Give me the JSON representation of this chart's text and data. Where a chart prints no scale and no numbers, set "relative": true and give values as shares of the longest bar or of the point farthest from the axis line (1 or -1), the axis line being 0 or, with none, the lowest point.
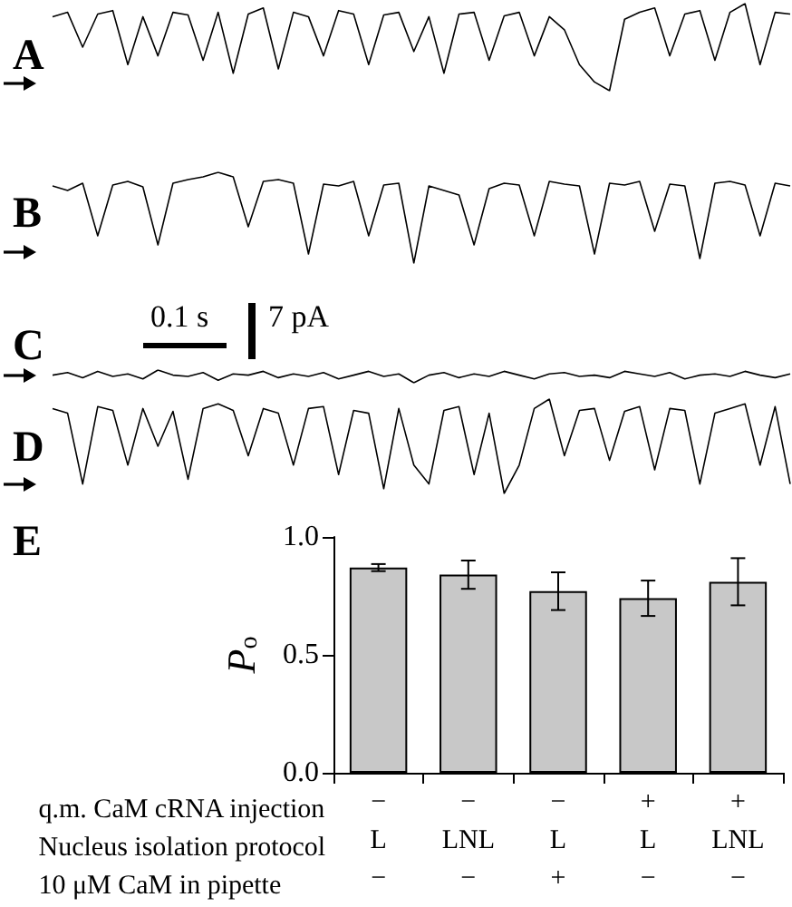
{
  "chart_data": [
    {
      "type": "line",
      "title": "A",
      "relative": true,
      "categories": [
        null,
        null,
        null,
        null,
        null,
        null,
        null,
        null,
        null,
        null,
        null,
        null,
        null,
        null,
        null,
        null,
        null,
        null,
        null,
        null,
        null,
        null,
        null,
        null,
        null,
        null,
        null,
        null,
        null,
        null,
        null,
        null,
        null,
        null,
        null,
        null,
        null,
        null,
        null,
        null,
        null,
        null,
        null,
        null,
        null,
        null,
        null,
        null,
        null,
        null
      ],
      "series": [
        {
          "color": "#000000",
          "values": [
            0.85,
            0.9,
            0.5,
            0.88,
            0.92,
            0.3,
            0.85,
            0.4,
            0.9,
            0.87,
            0.35,
            0.9,
            0.2,
            0.88,
            0.95,
            0.25,
            0.9,
            0.85,
            0.4,
            0.92,
            0.88,
            0.3,
            0.87,
            0.9,
            0.45,
            0.85,
            0.2,
            0.88,
            0.9,
            0.35,
            0.86,
            0.9,
            0.4,
            0.85,
            0.7,
            0.3,
            0.1,
            0.0,
            0.82,
            0.9,
            0.95,
            0.4,
            0.88,
            0.92,
            0.35,
            0.9,
            1.0,
            0.3,
            0.9,
            0.88
          ]
        }
      ]
    },
    {
      "type": "line",
      "title": "B",
      "relative": true,
      "categories": [
        null,
        null,
        null,
        null,
        null,
        null,
        null,
        null,
        null,
        null,
        null,
        null,
        null,
        null,
        null,
        null,
        null,
        null,
        null,
        null,
        null,
        null,
        null,
        null,
        null,
        null,
        null,
        null,
        null,
        null,
        null,
        null,
        null,
        null,
        null,
        null,
        null,
        null,
        null,
        null,
        null,
        null,
        null,
        null,
        null,
        null,
        null,
        null,
        null,
        null
      ],
      "series": [
        {
          "color": "#000000",
          "values": [
            0.85,
            0.8,
            0.88,
            0.3,
            0.86,
            0.9,
            0.84,
            0.2,
            0.88,
            0.92,
            0.95,
            1.0,
            0.95,
            0.4,
            0.9,
            0.92,
            0.88,
            0.1,
            0.87,
            0.85,
            0.9,
            0.3,
            0.86,
            0.88,
            0.0,
            0.85,
            0.8,
            0.75,
            0.2,
            0.82,
            0.88,
            0.86,
            0.3,
            0.9,
            0.87,
            0.85,
            0.1,
            0.88,
            0.86,
            0.9,
            0.35,
            0.87,
            0.85,
            0.05,
            0.88,
            0.9,
            0.86,
            0.3,
            0.88,
            0.85
          ]
        }
      ]
    },
    {
      "type": "line",
      "title": "C",
      "relative": true,
      "annotations": [
        "0.1 s",
        "7 pA"
      ],
      "categories": [
        null,
        null,
        null,
        null,
        null,
        null,
        null,
        null,
        null,
        null,
        null,
        null,
        null,
        null,
        null,
        null,
        null,
        null,
        null,
        null,
        null,
        null,
        null,
        null,
        null,
        null,
        null,
        null,
        null,
        null,
        null,
        null,
        null,
        null,
        null,
        null,
        null,
        null,
        null,
        null,
        null,
        null,
        null,
        null,
        null,
        null,
        null,
        null,
        null,
        null
      ],
      "series": [
        {
          "color": "#000000",
          "values": [
            0.6,
            0.8,
            0.4,
            0.9,
            0.5,
            0.7,
            0.3,
            1.0,
            0.6,
            0.5,
            0.8,
            0.2,
            0.7,
            0.6,
            0.9,
            0.4,
            0.7,
            0.5,
            0.8,
            0.3,
            0.6,
            0.9,
            0.5,
            0.7,
            0.0,
            0.6,
            0.8,
            0.4,
            0.7,
            0.5,
            0.9,
            0.6,
            0.3,
            0.7,
            0.8,
            0.5,
            0.6,
            0.4,
            0.9,
            0.7,
            0.5,
            0.8,
            0.3,
            0.6,
            0.7,
            0.5,
            0.9,
            0.6,
            0.4,
            0.7
          ]
        }
      ]
    },
    {
      "type": "line",
      "title": "D",
      "relative": true,
      "categories": [
        null,
        null,
        null,
        null,
        null,
        null,
        null,
        null,
        null,
        null,
        null,
        null,
        null,
        null,
        null,
        null,
        null,
        null,
        null,
        null,
        null,
        null,
        null,
        null,
        null,
        null,
        null,
        null,
        null,
        null,
        null,
        null,
        null,
        null,
        null,
        null,
        null,
        null,
        null,
        null,
        null,
        null,
        null,
        null,
        null,
        null,
        null,
        null,
        null,
        null
      ],
      "series": [
        {
          "color": "#000000",
          "values": [
            0.9,
            0.85,
            0.1,
            0.92,
            0.88,
            0.3,
            0.9,
            0.5,
            0.87,
            0.15,
            0.9,
            0.95,
            0.88,
            0.4,
            0.9,
            0.85,
            0.3,
            0.9,
            0.92,
            0.2,
            0.88,
            0.85,
            0.05,
            0.9,
            0.3,
            0.1,
            0.88,
            0.92,
            0.2,
            0.85,
            0.0,
            0.3,
            0.9,
            1.0,
            0.4,
            0.88,
            0.9,
            0.35,
            0.87,
            0.92,
            0.25,
            0.9,
            0.88,
            0.1,
            0.85,
            0.9,
            0.95,
            0.3,
            0.92,
            0.1
          ]
        }
      ]
    },
    {
      "type": "bar",
      "title": "E",
      "ylabel": "P$_{o}$",
      "xlabel": "q.m. CaM cRNA injection\nNucleus isolation protocol\n10 μM CaM in pipette",
      "categories": [
        "−\nL\n−",
        "−\nLNL\n−",
        "−\nL\n+",
        "+\nL\n−",
        "+\nLNL\n−"
      ],
      "values": [
        0.87,
        0.84,
        0.77,
        0.74,
        0.81
      ],
      "errors": [
        0.015,
        0.06,
        0.08,
        0.075,
        0.1
      ],
      "color": "#c8c8c8",
      "ylim": [
        0,
        1
      ],
      "yticks": [
        {
          "value": 0,
          "label": "0.0"
        },
        {
          "value": 0.5,
          "label": "0.5"
        },
        {
          "value": 1,
          "label": "1.0"
        }
      ]
    }
  ]
}
